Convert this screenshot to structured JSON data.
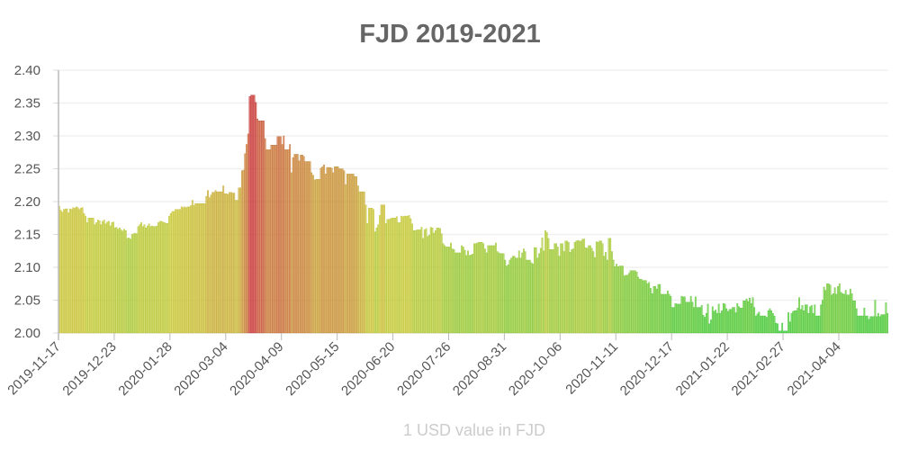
{
  "chart_data": {
    "type": "bar",
    "title": "FJD 2019-2021",
    "xlabel": "1 USD value in FJD",
    "ylabel": "",
    "ylim": [
      2.0,
      2.4
    ],
    "y_ticks": [
      "2.00",
      "2.05",
      "2.10",
      "2.15",
      "2.20",
      "2.25",
      "2.30",
      "2.35",
      "2.40"
    ],
    "x_ticks": [
      "2019-11-17",
      "2019-12-23",
      "2020-01-28",
      "2020-03-04",
      "2020-04-09",
      "2020-05-15",
      "2020-06-20",
      "2020-07-26",
      "2020-08-31",
      "2020-10-06",
      "2020-11-11",
      "2020-12-17",
      "2021-01-22",
      "2021-02-27",
      "2021-04-04"
    ],
    "grid": true,
    "color_scale": {
      "low": "#44cc44",
      "mid": "#c8d44a",
      "high": "#cc3a2e"
    },
    "values": [
      2.193,
      2.187,
      2.184,
      2.188,
      2.189,
      2.189,
      2.183,
      2.189,
      2.188,
      2.191,
      2.19,
      2.192,
      2.191,
      2.188,
      2.19,
      2.191,
      2.182,
      2.178,
      2.168,
      2.175,
      2.175,
      2.175,
      2.175,
      2.165,
      2.168,
      2.172,
      2.171,
      2.165,
      2.17,
      2.172,
      2.166,
      2.169,
      2.17,
      2.163,
      2.168,
      2.169,
      2.16,
      2.161,
      2.158,
      2.16,
      2.157,
      2.155,
      2.158,
      2.156,
      2.144,
      2.145,
      2.143,
      2.15,
      2.151,
      2.152,
      2.151,
      2.162,
      2.165,
      2.168,
      2.162,
      2.165,
      2.16,
      2.163,
      2.166,
      2.162,
      2.163,
      2.162,
      2.162,
      2.163,
      2.168,
      2.17,
      2.17,
      2.169,
      2.168,
      2.167,
      2.167,
      2.178,
      2.182,
      2.185,
      2.185,
      2.188,
      2.188,
      2.188,
      2.188,
      2.192,
      2.191,
      2.192,
      2.191,
      2.192,
      2.192,
      2.194,
      2.202,
      2.194,
      2.197,
      2.197,
      2.197,
      2.197,
      2.197,
      2.197,
      2.197,
      2.208,
      2.217,
      2.206,
      2.21,
      2.214,
      2.214,
      2.217,
      2.215,
      2.215,
      2.215,
      2.215,
      2.224,
      2.212,
      2.212,
      2.211,
      2.214,
      2.214,
      2.213,
      2.213,
      2.202,
      2.202,
      2.221,
      2.221,
      2.247,
      2.248,
      2.273,
      2.287,
      2.303,
      2.36,
      2.362,
      2.362,
      2.362,
      2.351,
      2.326,
      2.323,
      2.323,
      2.323,
      2.323,
      2.296,
      2.279,
      2.279,
      2.279,
      2.286,
      2.286,
      2.286,
      2.286,
      2.299,
      2.299,
      2.299,
      2.287,
      2.3,
      2.279,
      2.279,
      2.279,
      2.287,
      2.244,
      2.267,
      2.272,
      2.272,
      2.272,
      2.262,
      2.271,
      2.271,
      2.269,
      2.261,
      2.261,
      2.261,
      2.261,
      2.244,
      2.24,
      2.233,
      2.234,
      2.234,
      2.234,
      2.251,
      2.253,
      2.256,
      2.242,
      2.252,
      2.252,
      2.252,
      2.251,
      2.244,
      2.253,
      2.253,
      2.253,
      2.25,
      2.25,
      2.25,
      2.247,
      2.226,
      2.242,
      2.242,
      2.242,
      2.242,
      2.242,
      2.238,
      2.238,
      2.224,
      2.215,
      2.215,
      2.215,
      2.215,
      2.195,
      2.167,
      2.19,
      2.19,
      2.19,
      2.188,
      2.154,
      2.16,
      2.165,
      2.179,
      2.195,
      2.195,
      2.195,
      2.167,
      2.173,
      2.173,
      2.174,
      2.175,
      2.175,
      2.175,
      2.177,
      2.168,
      2.168,
      2.178,
      2.177,
      2.178,
      2.178,
      2.178,
      2.179,
      2.174,
      2.166,
      2.156,
      2.156,
      2.157,
      2.157,
      2.157,
      2.161,
      2.144,
      2.157,
      2.159,
      2.147,
      2.149,
      2.161,
      2.16,
      2.152,
      2.156,
      2.16,
      2.16,
      2.159,
      2.151,
      2.136,
      2.133,
      2.131,
      2.131,
      2.131,
      2.137,
      2.128,
      2.127,
      2.122,
      2.122,
      2.122,
      2.122,
      2.133,
      2.131,
      2.126,
      2.118,
      2.125,
      2.118,
      2.119,
      2.12,
      2.136,
      2.136,
      2.137,
      2.138,
      2.138,
      2.138,
      2.136,
      2.128,
      2.122,
      2.133,
      2.133,
      2.133,
      2.133,
      2.133,
      2.137,
      2.124,
      2.122,
      2.121,
      2.121,
      2.121,
      2.111,
      2.102,
      2.104,
      2.111,
      2.114,
      2.117,
      2.117,
      2.114,
      2.114,
      2.125,
      2.114,
      2.122,
      2.128,
      2.124,
      2.111,
      2.111,
      2.111,
      2.107,
      2.105,
      2.13,
      2.13,
      2.114,
      2.121,
      2.129,
      2.145,
      2.125,
      2.156,
      2.153,
      2.144,
      2.127,
      2.127,
      2.127,
      2.136,
      2.136,
      2.131,
      2.117,
      2.136,
      2.136,
      2.124,
      2.14,
      2.14,
      2.138,
      2.123,
      2.127,
      2.128,
      2.138,
      2.14,
      2.141,
      2.14,
      2.14,
      2.143,
      2.143,
      2.13,
      2.129,
      2.133,
      2.133,
      2.129,
      2.124,
      2.115,
      2.139,
      2.138,
      2.14,
      2.14,
      2.136,
      2.117,
      2.123,
      2.111,
      2.144,
      2.144,
      2.124,
      2.111,
      2.101,
      2.105,
      2.101,
      2.102,
      2.102,
      2.102,
      2.087,
      2.088,
      2.088,
      2.091,
      2.095,
      2.095,
      2.095,
      2.095,
      2.093,
      2.085,
      2.082,
      2.082,
      2.08,
      2.08,
      2.08,
      2.075,
      2.077,
      2.068,
      2.06,
      2.071,
      2.071,
      2.067,
      2.074,
      2.074,
      2.059,
      2.059,
      2.059,
      2.059,
      2.064,
      2.059,
      2.056,
      2.039,
      2.039,
      2.045,
      2.044,
      2.044,
      2.044,
      2.056,
      2.055,
      2.055,
      2.047,
      2.047,
      2.047,
      2.056,
      2.047,
      2.039,
      2.055,
      2.039,
      2.039,
      2.039,
      2.042,
      2.027,
      2.024,
      2.03,
      2.044,
      2.014,
      2.02,
      2.04,
      2.033,
      2.035,
      2.03,
      2.044,
      2.03,
      2.034,
      2.045,
      2.044,
      2.037,
      2.033,
      2.036,
      2.036,
      2.039,
      2.039,
      2.031,
      2.045,
      2.04,
      2.038,
      2.038,
      2.049,
      2.049,
      2.052,
      2.048,
      2.053,
      2.045,
      2.054,
      2.039,
      2.026,
      2.029,
      2.032,
      2.026,
      2.026,
      2.026,
      2.026,
      2.024,
      2.034,
      2.037,
      2.034,
      2.03,
      2.026,
      2.015,
      2.014,
      2.003,
      2.003,
      2.015,
      2.003,
      2.003,
      2.003,
      2.031,
      2.017,
      2.03,
      2.033,
      2.034,
      2.034,
      2.038,
      2.054,
      2.036,
      2.042,
      2.034,
      2.043,
      2.043,
      2.03,
      2.04,
      2.042,
      2.03,
      2.043,
      2.026,
      2.026,
      2.026,
      2.043,
      2.05,
      2.07,
      2.065,
      2.075,
      2.075,
      2.073,
      2.058,
      2.06,
      2.069,
      2.059,
      2.071,
      2.075,
      2.062,
      2.06,
      2.059,
      2.065,
      2.058,
      2.058,
      2.067,
      2.06,
      2.049,
      2.049,
      2.037,
      2.026,
      2.026,
      2.026,
      2.026,
      2.038,
      2.026,
      2.026,
      2.021,
      2.025,
      2.025,
      2.025,
      2.05,
      2.025,
      2.03,
      2.025,
      2.028,
      2.028,
      2.028,
      2.046,
      2.03
    ]
  }
}
